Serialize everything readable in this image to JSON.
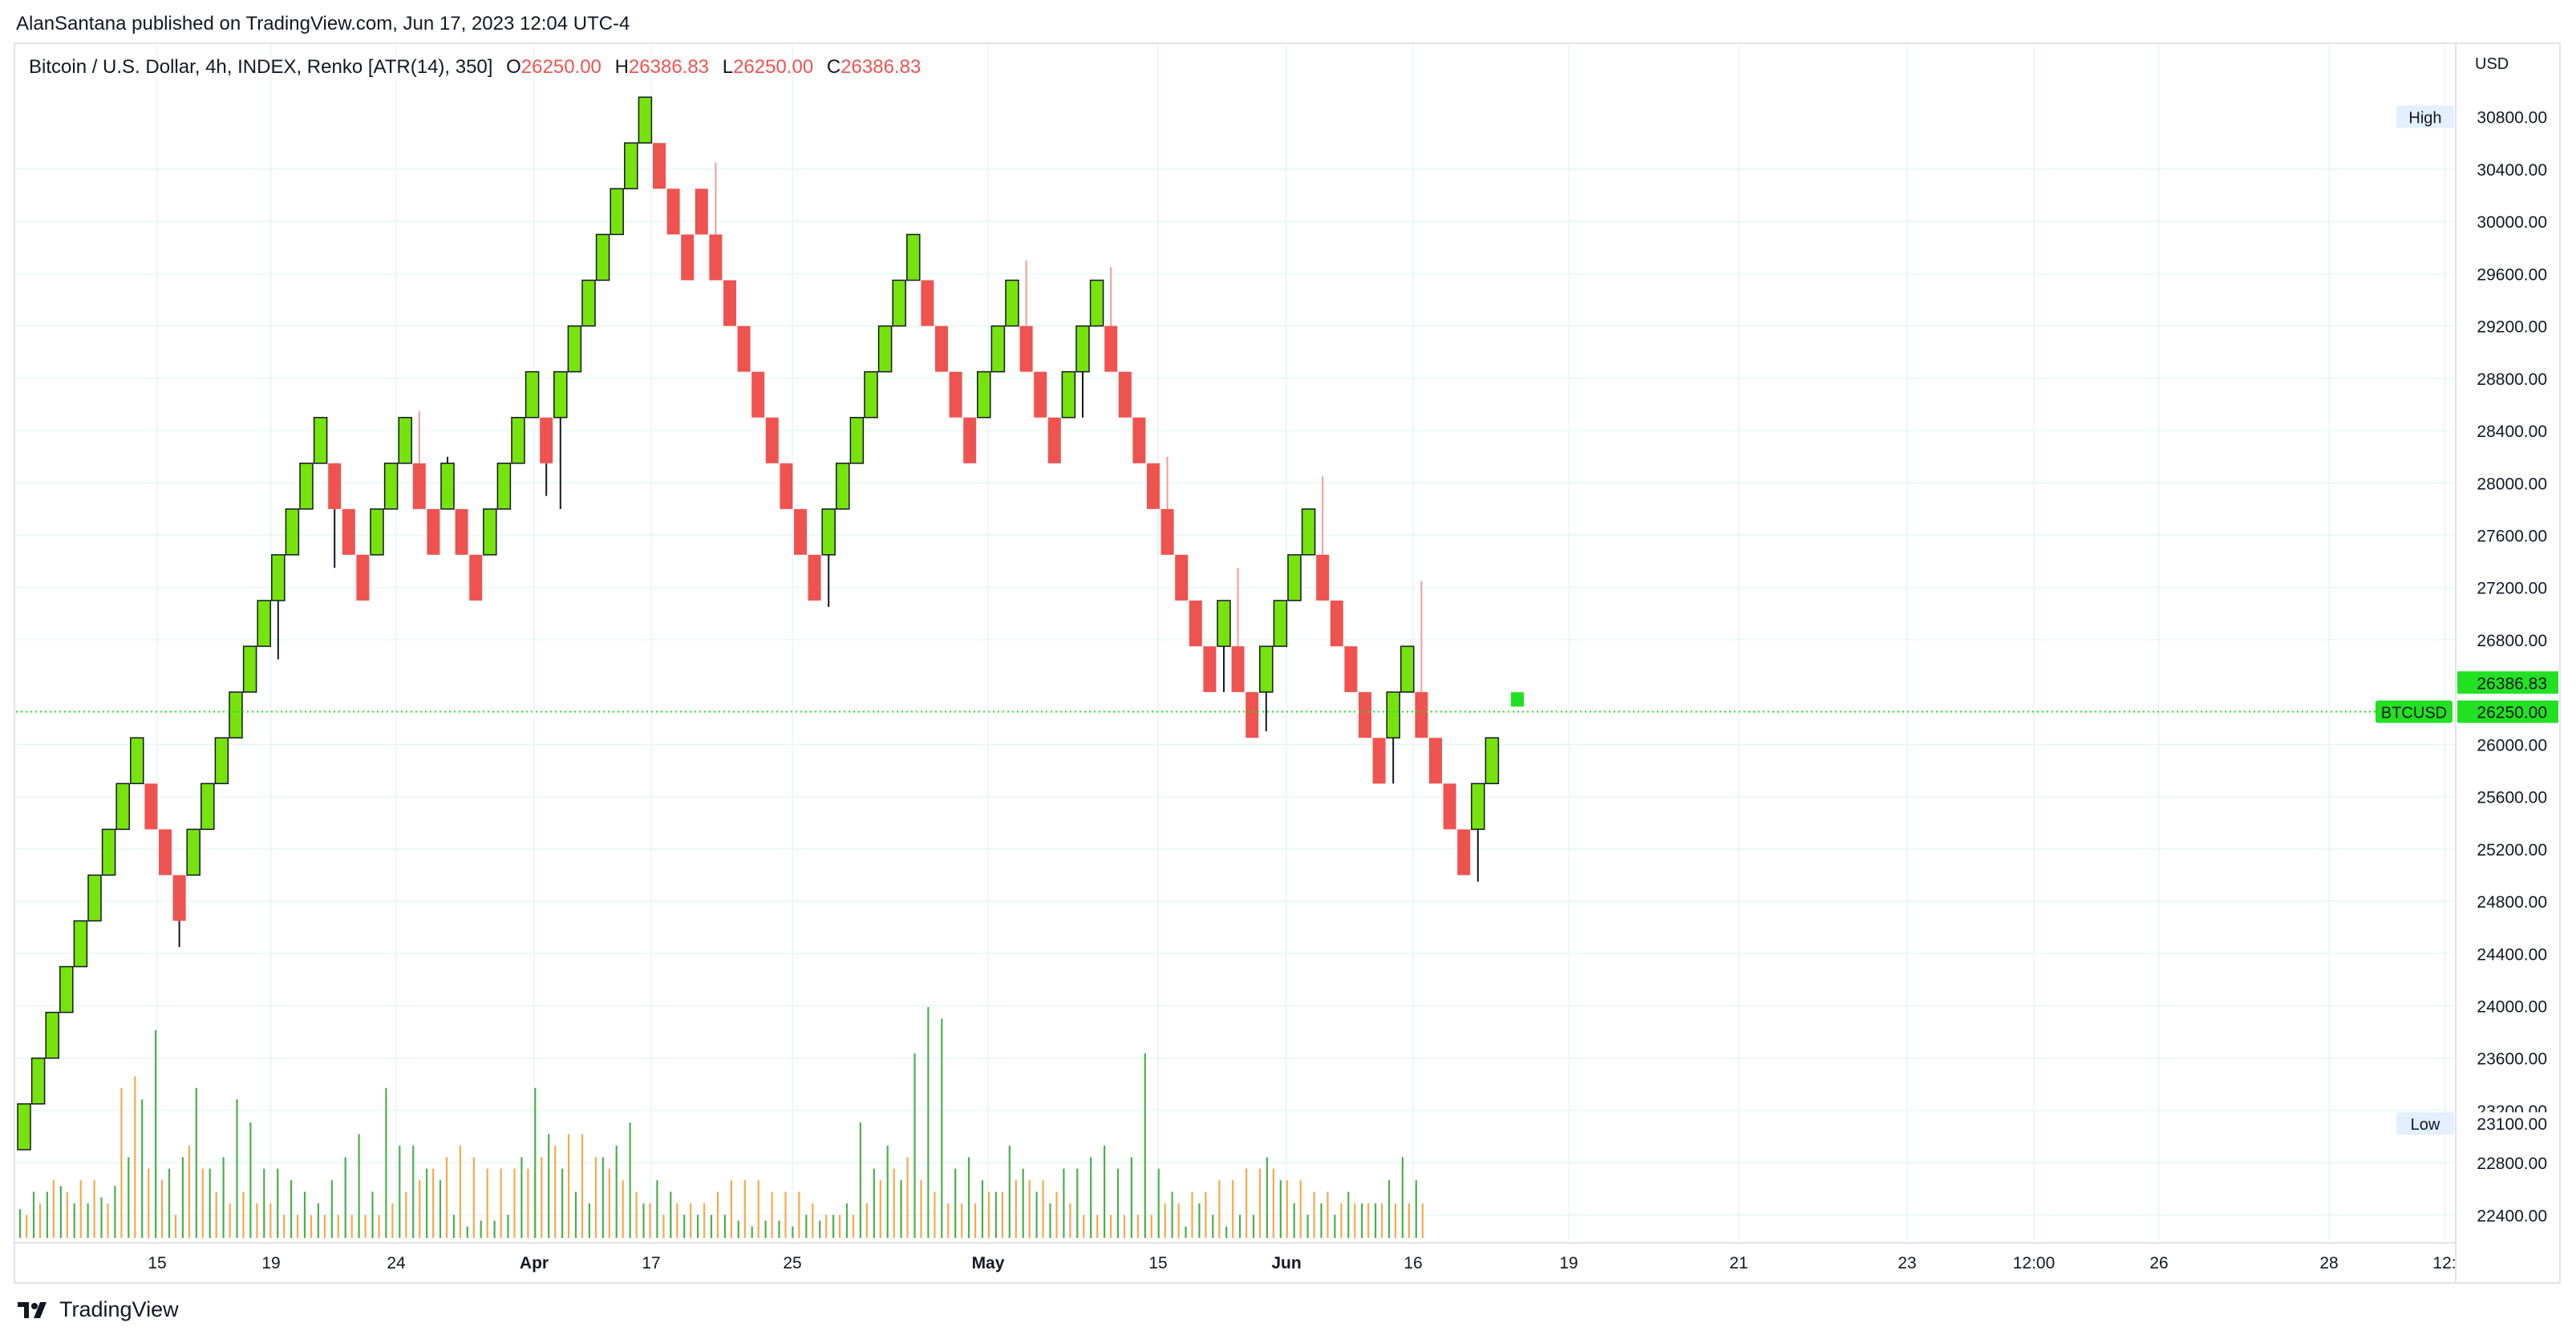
{
  "header": {
    "published_by": "AlanSantana published on TradingView.com, Jun 17, 2023 12:04 UTC-4"
  },
  "legend": {
    "symbol": "Bitcoin / U.S. Dollar, 4h, INDEX, Renko [ATR(14), 350]",
    "open_label": "O",
    "open": "26250.00",
    "high_label": "H",
    "high": "26386.83",
    "low_label": "L",
    "low": "26250.00",
    "close_label": "C",
    "close": "26386.83"
  },
  "footer": {
    "brand": "TradingView"
  },
  "colors": {
    "up": "#76e30d",
    "down": "#ef5350",
    "vol_up": "#4caf50",
    "vol_down": "#f7a94b",
    "last_price": "#22e022",
    "grid": "#e6f7f5"
  },
  "chart_data": {
    "type": "renko",
    "brick_size": 350,
    "currency": "USD",
    "x_tick_labels": [
      "15",
      "19",
      "24",
      "Apr",
      "17",
      "25",
      "May",
      "15",
      "Jun",
      "16",
      "19",
      "21",
      "23",
      "12:00",
      "26",
      "28",
      "12:"
    ],
    "y_tick_labels": [
      "30400.00",
      "30000.00",
      "29600.00",
      "29200.00",
      "28800.00",
      "28400.00",
      "28000.00",
      "27600.00",
      "27200.00",
      "26800.00",
      "26000.00",
      "25600.00",
      "25200.00",
      "24800.00",
      "24400.00",
      "24000.00",
      "23600.00",
      "23200.00",
      "22800.00",
      "22400.00"
    ],
    "ylim": [
      22200,
      31350
    ],
    "high_marker": {
      "label": "High",
      "value": "30800.00"
    },
    "low_marker": {
      "label": "Low",
      "value": "23100.00"
    },
    "last_price": {
      "symbol": "BTCUSD",
      "value": "26250.00",
      "current": "26386.83"
    },
    "bricks": [
      {
        "d": "up",
        "o": 22900,
        "c": 23250
      },
      {
        "d": "up",
        "o": 23250,
        "c": 23600
      },
      {
        "d": "up",
        "o": 23600,
        "c": 23950
      },
      {
        "d": "up",
        "o": 23950,
        "c": 24300
      },
      {
        "d": "up",
        "o": 24300,
        "c": 24650
      },
      {
        "d": "up",
        "o": 24650,
        "c": 25000
      },
      {
        "d": "up",
        "o": 25000,
        "c": 25350
      },
      {
        "d": "up",
        "o": 25350,
        "c": 25700
      },
      {
        "d": "up",
        "o": 25700,
        "c": 26050
      },
      {
        "d": "down",
        "o": 25700,
        "c": 25350
      },
      {
        "d": "down",
        "o": 25350,
        "c": 25000
      },
      {
        "d": "down",
        "o": 25000,
        "c": 24650,
        "lo": 24450
      },
      {
        "d": "up",
        "o": 25000,
        "c": 25350
      },
      {
        "d": "up",
        "o": 25350,
        "c": 25700
      },
      {
        "d": "up",
        "o": 25700,
        "c": 26050
      },
      {
        "d": "up",
        "o": 26050,
        "c": 26400
      },
      {
        "d": "up",
        "o": 26400,
        "c": 26750
      },
      {
        "d": "up",
        "o": 26750,
        "c": 27100
      },
      {
        "d": "up",
        "o": 27100,
        "c": 27450,
        "lo": 26650
      },
      {
        "d": "up",
        "o": 27450,
        "c": 27800
      },
      {
        "d": "up",
        "o": 27800,
        "c": 28150
      },
      {
        "d": "up",
        "o": 28150,
        "c": 28500
      },
      {
        "d": "down",
        "o": 28150,
        "c": 27800,
        "lo": 27350
      },
      {
        "d": "down",
        "o": 27800,
        "c": 27450
      },
      {
        "d": "down",
        "o": 27450,
        "c": 27100
      },
      {
        "d": "up",
        "o": 27450,
        "c": 27800
      },
      {
        "d": "up",
        "o": 27800,
        "c": 28150
      },
      {
        "d": "up",
        "o": 28150,
        "c": 28500
      },
      {
        "d": "down",
        "o": 28150,
        "c": 27800,
        "hi": 28550
      },
      {
        "d": "down",
        "o": 27800,
        "c": 27450
      },
      {
        "d": "up",
        "o": 27800,
        "c": 28150,
        "hi": 28200
      },
      {
        "d": "down",
        "o": 27800,
        "c": 27450
      },
      {
        "d": "down",
        "o": 27450,
        "c": 27100
      },
      {
        "d": "up",
        "o": 27450,
        "c": 27800
      },
      {
        "d": "up",
        "o": 27800,
        "c": 28150
      },
      {
        "d": "up",
        "o": 28150,
        "c": 28500
      },
      {
        "d": "up",
        "o": 28500,
        "c": 28850
      },
      {
        "d": "down",
        "o": 28500,
        "c": 28150,
        "lo": 27900
      },
      {
        "d": "up",
        "o": 28500,
        "c": 28850,
        "lo": 27800
      },
      {
        "d": "up",
        "o": 28850,
        "c": 29200
      },
      {
        "d": "up",
        "o": 29200,
        "c": 29550
      },
      {
        "d": "up",
        "o": 29550,
        "c": 29900
      },
      {
        "d": "up",
        "o": 29900,
        "c": 30250
      },
      {
        "d": "up",
        "o": 30250,
        "c": 30600
      },
      {
        "d": "up",
        "o": 30600,
        "c": 30950
      },
      {
        "d": "down",
        "o": 30600,
        "c": 30250
      },
      {
        "d": "down",
        "o": 30250,
        "c": 29900
      },
      {
        "d": "down",
        "o": 29900,
        "c": 29550
      },
      {
        "d": "down",
        "o": 30250,
        "c": 29900
      },
      {
        "d": "down",
        "o": 29900,
        "c": 29550,
        "hi": 30450
      },
      {
        "d": "down",
        "o": 29550,
        "c": 29200
      },
      {
        "d": "down",
        "o": 29200,
        "c": 28850
      },
      {
        "d": "down",
        "o": 28850,
        "c": 28500
      },
      {
        "d": "down",
        "o": 28500,
        "c": 28150
      },
      {
        "d": "down",
        "o": 28150,
        "c": 27800
      },
      {
        "d": "down",
        "o": 27800,
        "c": 27450
      },
      {
        "d": "down",
        "o": 27450,
        "c": 27100
      },
      {
        "d": "up",
        "o": 27450,
        "c": 27800,
        "lo": 27050
      },
      {
        "d": "up",
        "o": 27800,
        "c": 28150
      },
      {
        "d": "up",
        "o": 28150,
        "c": 28500
      },
      {
        "d": "up",
        "o": 28500,
        "c": 28850
      },
      {
        "d": "up",
        "o": 28850,
        "c": 29200
      },
      {
        "d": "up",
        "o": 29200,
        "c": 29550
      },
      {
        "d": "up",
        "o": 29550,
        "c": 29900
      },
      {
        "d": "down",
        "o": 29550,
        "c": 29200
      },
      {
        "d": "down",
        "o": 29200,
        "c": 28850
      },
      {
        "d": "down",
        "o": 28850,
        "c": 28500
      },
      {
        "d": "down",
        "o": 28500,
        "c": 28150
      },
      {
        "d": "up",
        "o": 28500,
        "c": 28850
      },
      {
        "d": "up",
        "o": 28850,
        "c": 29200
      },
      {
        "d": "up",
        "o": 29200,
        "c": 29550
      },
      {
        "d": "down",
        "o": 29200,
        "c": 28850,
        "hi": 29700
      },
      {
        "d": "down",
        "o": 28850,
        "c": 28500
      },
      {
        "d": "down",
        "o": 28500,
        "c": 28150
      },
      {
        "d": "up",
        "o": 28500,
        "c": 28850,
        "lo": 28500
      },
      {
        "d": "up",
        "o": 28850,
        "c": 29200,
        "lo": 28500
      },
      {
        "d": "up",
        "o": 29200,
        "c": 29550
      },
      {
        "d": "down",
        "o": 29200,
        "c": 28850,
        "hi": 29650
      },
      {
        "d": "down",
        "o": 28850,
        "c": 28500
      },
      {
        "d": "down",
        "o": 28500,
        "c": 28150
      },
      {
        "d": "down",
        "o": 28150,
        "c": 27800
      },
      {
        "d": "down",
        "o": 27800,
        "c": 27450,
        "hi": 28200
      },
      {
        "d": "down",
        "o": 27450,
        "c": 27100
      },
      {
        "d": "down",
        "o": 27100,
        "c": 26750
      },
      {
        "d": "down",
        "o": 26750,
        "c": 26400
      },
      {
        "d": "up",
        "o": 26750,
        "c": 27100,
        "lo": 26400
      },
      {
        "d": "down",
        "o": 26750,
        "c": 26400,
        "hi": 27350
      },
      {
        "d": "down",
        "o": 26400,
        "c": 26050
      },
      {
        "d": "up",
        "o": 26400,
        "c": 26750,
        "lo": 26100
      },
      {
        "d": "up",
        "o": 26750,
        "c": 27100
      },
      {
        "d": "up",
        "o": 27100,
        "c": 27450
      },
      {
        "d": "up",
        "o": 27450,
        "c": 27800
      },
      {
        "d": "down",
        "o": 27450,
        "c": 27100,
        "hi": 28050
      },
      {
        "d": "down",
        "o": 27100,
        "c": 26750
      },
      {
        "d": "down",
        "o": 26750,
        "c": 26400
      },
      {
        "d": "down",
        "o": 26400,
        "c": 26050
      },
      {
        "d": "down",
        "o": 26050,
        "c": 25700
      },
      {
        "d": "up",
        "o": 26050,
        "c": 26400,
        "lo": 25700
      },
      {
        "d": "up",
        "o": 26400,
        "c": 26750
      },
      {
        "d": "down",
        "o": 26400,
        "c": 26050,
        "hi": 27250
      },
      {
        "d": "down",
        "o": 26050,
        "c": 25700
      },
      {
        "d": "down",
        "o": 25700,
        "c": 25350
      },
      {
        "d": "down",
        "o": 25350,
        "c": 25000
      },
      {
        "d": "up",
        "o": 25350,
        "c": 25700,
        "lo": 24950
      },
      {
        "d": "up",
        "o": 25700,
        "c": 26050
      }
    ],
    "last_brick": {
      "o": 26250,
      "c": 26386.83
    },
    "volume": {
      "up": [
        5,
        8,
        8,
        9,
        6,
        6,
        7,
        9,
        14,
        24,
        36,
        12,
        14,
        26,
        12,
        14,
        24,
        20,
        12,
        12,
        10,
        8,
        6,
        10,
        14,
        18,
        8,
        26,
        16,
        16,
        12,
        10,
        4,
        2,
        3,
        3,
        4,
        14,
        26,
        18,
        12,
        8,
        6,
        14,
        16,
        20,
        6,
        10,
        8,
        4,
        4,
        4,
        4,
        3,
        2,
        3,
        3,
        2,
        4,
        3,
        4,
        6,
        20,
        12,
        16,
        10,
        32,
        40,
        38,
        12,
        14,
        10,
        8,
        16,
        12,
        8,
        6,
        12,
        12,
        14,
        16,
        12,
        14,
        32,
        12,
        8,
        2,
        6,
        4,
        2,
        4,
        4,
        14,
        10,
        6,
        4,
        6,
        4,
        8,
        6,
        6,
        10,
        14,
        10
      ],
      "down": [
        4,
        6,
        10,
        8,
        10,
        10,
        6,
        26,
        28,
        12,
        10,
        4,
        16,
        12,
        8,
        6,
        8,
        6,
        6,
        4,
        4,
        4,
        4,
        4,
        4,
        4,
        4,
        6,
        8,
        10,
        12,
        14,
        16,
        14,
        12,
        12,
        12,
        12,
        14,
        16,
        18,
        18,
        14,
        12,
        10,
        8,
        6,
        4,
        6,
        6,
        6,
        8,
        10,
        10,
        10,
        8,
        8,
        8,
        6,
        4,
        4,
        4,
        6,
        10,
        12,
        14,
        10,
        8,
        6,
        6,
        6,
        8,
        8,
        10,
        10,
        10,
        8,
        6,
        4,
        4,
        4,
        4,
        4,
        4,
        6,
        6,
        8,
        8,
        10,
        10,
        12,
        12,
        12,
        10,
        10,
        8,
        8,
        6,
        6,
        6,
        6,
        6,
        6,
        6
      ]
    }
  }
}
